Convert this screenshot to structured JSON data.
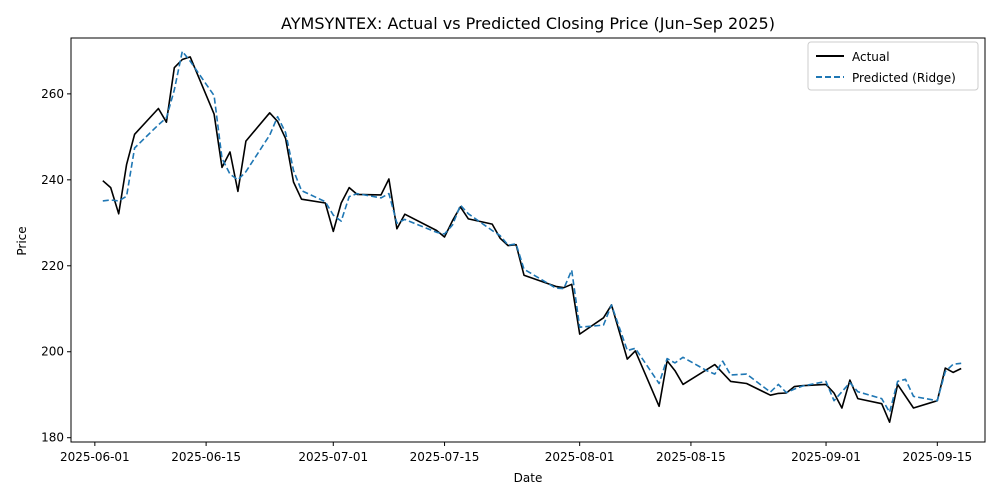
{
  "chart_data": {
    "type": "line",
    "title": "AYMSYNTEX: Actual vs Predicted Closing Price (Jun–Sep 2025)",
    "xlabel": "Date",
    "ylabel": "Price",
    "xlim": [
      "2025-05-29",
      "2025-09-21"
    ],
    "ylim": [
      179,
      273
    ],
    "x_ticks": [
      "2025-06-01",
      "2025-06-15",
      "2025-07-01",
      "2025-07-15",
      "2025-08-01",
      "2025-08-15",
      "2025-09-01",
      "2025-09-15"
    ],
    "y_ticks": [
      180,
      200,
      220,
      240,
      260
    ],
    "grid": false,
    "legend": "top-right",
    "colors": {
      "actual": "#000000",
      "predicted": "#1f77b4"
    },
    "series": [
      {
        "name": "Actual",
        "style": "solid",
        "points": [
          [
            "2025-06-02",
            239.8
          ],
          [
            "2025-06-03",
            238.2
          ],
          [
            "2025-06-04",
            232.1
          ],
          [
            "2025-06-05",
            243.6
          ],
          [
            "2025-06-06",
            250.6
          ],
          [
            "2025-06-09",
            256.6
          ],
          [
            "2025-06-10",
            253.4
          ],
          [
            "2025-06-11",
            266.1
          ],
          [
            "2025-06-12",
            268.0
          ],
          [
            "2025-06-13",
            268.6
          ],
          [
            "2025-06-16",
            255.3
          ],
          [
            "2025-06-17",
            242.9
          ],
          [
            "2025-06-18",
            246.5
          ],
          [
            "2025-06-19",
            237.3
          ],
          [
            "2025-06-20",
            249.0
          ],
          [
            "2025-06-23",
            255.6
          ],
          [
            "2025-06-24",
            253.6
          ],
          [
            "2025-06-25",
            249.6
          ],
          [
            "2025-06-26",
            239.5
          ],
          [
            "2025-06-27",
            235.5
          ],
          [
            "2025-06-30",
            234.6
          ],
          [
            "2025-07-01",
            228.0
          ],
          [
            "2025-07-02",
            234.6
          ],
          [
            "2025-07-03",
            238.2
          ],
          [
            "2025-07-04",
            236.6
          ],
          [
            "2025-07-07",
            236.5
          ],
          [
            "2025-07-08",
            240.2
          ],
          [
            "2025-07-09",
            228.6
          ],
          [
            "2025-07-10",
            232.0
          ],
          [
            "2025-07-14",
            228.2
          ],
          [
            "2025-07-15",
            226.7
          ],
          [
            "2025-07-16",
            230.5
          ],
          [
            "2025-07-17",
            233.7
          ],
          [
            "2025-07-18",
            230.9
          ],
          [
            "2025-07-21",
            229.7
          ],
          [
            "2025-07-22",
            226.4
          ],
          [
            "2025-07-23",
            224.7
          ],
          [
            "2025-07-24",
            224.9
          ],
          [
            "2025-07-25",
            217.8
          ],
          [
            "2025-07-29",
            215.2
          ],
          [
            "2025-07-30",
            214.9
          ],
          [
            "2025-07-31",
            215.7
          ],
          [
            "2025-08-01",
            204.1
          ],
          [
            "2025-08-04",
            207.9
          ],
          [
            "2025-08-05",
            210.9
          ],
          [
            "2025-08-07",
            198.3
          ],
          [
            "2025-08-08",
            200.2
          ],
          [
            "2025-08-11",
            187.3
          ],
          [
            "2025-08-12",
            197.9
          ],
          [
            "2025-08-13",
            195.6
          ],
          [
            "2025-08-14",
            192.4
          ],
          [
            "2025-08-18",
            197.0
          ],
          [
            "2025-08-20",
            193.1
          ],
          [
            "2025-08-22",
            192.6
          ],
          [
            "2025-08-25",
            189.9
          ],
          [
            "2025-08-26",
            190.3
          ],
          [
            "2025-08-27",
            190.4
          ],
          [
            "2025-08-28",
            191.9
          ],
          [
            "2025-08-29",
            192.1
          ],
          [
            "2025-09-01",
            192.4
          ],
          [
            "2025-09-02",
            190.4
          ],
          [
            "2025-09-03",
            186.9
          ],
          [
            "2025-09-04",
            193.4
          ],
          [
            "2025-09-05",
            189.1
          ],
          [
            "2025-09-08",
            187.9
          ],
          [
            "2025-09-09",
            183.6
          ],
          [
            "2025-09-10",
            192.4
          ],
          [
            "2025-09-12",
            186.9
          ],
          [
            "2025-09-15",
            188.6
          ],
          [
            "2025-09-16",
            196.2
          ],
          [
            "2025-09-17",
            195.2
          ],
          [
            "2025-09-18",
            196.1
          ]
        ]
      },
      {
        "name": "Predicted (Ridge)",
        "style": "dashed",
        "points": [
          [
            "2025-06-02",
            235.1
          ],
          [
            "2025-06-03",
            235.3
          ],
          [
            "2025-06-04",
            235.1
          ],
          [
            "2025-06-05",
            236.2
          ],
          [
            "2025-06-06",
            247.4
          ],
          [
            "2025-06-09",
            252.8
          ],
          [
            "2025-06-10",
            254.4
          ],
          [
            "2025-06-11",
            260.9
          ],
          [
            "2025-06-12",
            269.9
          ],
          [
            "2025-06-13",
            267.6
          ],
          [
            "2025-06-16",
            259.6
          ],
          [
            "2025-06-17",
            245.0
          ],
          [
            "2025-06-18",
            241.3
          ],
          [
            "2025-06-19",
            240.0
          ],
          [
            "2025-06-20",
            241.9
          ],
          [
            "2025-06-23",
            250.4
          ],
          [
            "2025-06-24",
            254.7
          ],
          [
            "2025-06-25",
            251.0
          ],
          [
            "2025-06-26",
            242.2
          ],
          [
            "2025-06-27",
            237.5
          ],
          [
            "2025-06-30",
            234.9
          ],
          [
            "2025-07-01",
            231.8
          ],
          [
            "2025-07-02",
            230.4
          ],
          [
            "2025-07-03",
            236.1
          ],
          [
            "2025-07-04",
            236.8
          ],
          [
            "2025-07-07",
            235.8
          ],
          [
            "2025-07-08",
            236.8
          ],
          [
            "2025-07-09",
            229.9
          ],
          [
            "2025-07-10",
            230.8
          ],
          [
            "2025-07-14",
            227.8
          ],
          [
            "2025-07-15",
            227.4
          ],
          [
            "2025-07-16",
            229.5
          ],
          [
            "2025-07-17",
            234.1
          ],
          [
            "2025-07-18",
            232.1
          ],
          [
            "2025-07-21",
            228.2
          ],
          [
            "2025-07-22",
            227.0
          ],
          [
            "2025-07-23",
            224.8
          ],
          [
            "2025-07-24",
            225.1
          ],
          [
            "2025-07-25",
            219.2
          ],
          [
            "2025-07-29",
            214.8
          ],
          [
            "2025-07-30",
            214.7
          ],
          [
            "2025-07-31",
            219.0
          ],
          [
            "2025-08-01",
            205.7
          ],
          [
            "2025-08-04",
            206.2
          ],
          [
            "2025-08-05",
            210.9
          ],
          [
            "2025-08-07",
            200.3
          ],
          [
            "2025-08-08",
            200.8
          ],
          [
            "2025-08-11",
            192.6
          ],
          [
            "2025-08-12",
            198.4
          ],
          [
            "2025-08-13",
            197.4
          ],
          [
            "2025-08-14",
            198.7
          ],
          [
            "2025-08-17",
            195.6
          ],
          [
            "2025-08-18",
            194.8
          ],
          [
            "2025-08-19",
            197.8
          ],
          [
            "2025-08-20",
            194.6
          ],
          [
            "2025-08-22",
            194.8
          ],
          [
            "2025-08-25",
            190.6
          ],
          [
            "2025-08-26",
            192.4
          ],
          [
            "2025-08-27",
            190.5
          ],
          [
            "2025-08-28",
            191.3
          ],
          [
            "2025-08-29",
            192.0
          ],
          [
            "2025-09-01",
            193.1
          ],
          [
            "2025-09-02",
            188.6
          ],
          [
            "2025-09-04",
            192.8
          ],
          [
            "2025-09-05",
            190.7
          ],
          [
            "2025-09-08",
            189.1
          ],
          [
            "2025-09-09",
            185.9
          ],
          [
            "2025-09-10",
            193.1
          ],
          [
            "2025-09-11",
            193.6
          ],
          [
            "2025-09-12",
            189.6
          ],
          [
            "2025-09-15",
            188.6
          ],
          [
            "2025-09-16",
            195.4
          ],
          [
            "2025-09-17",
            197.1
          ],
          [
            "2025-09-18",
            197.3
          ]
        ]
      }
    ]
  }
}
